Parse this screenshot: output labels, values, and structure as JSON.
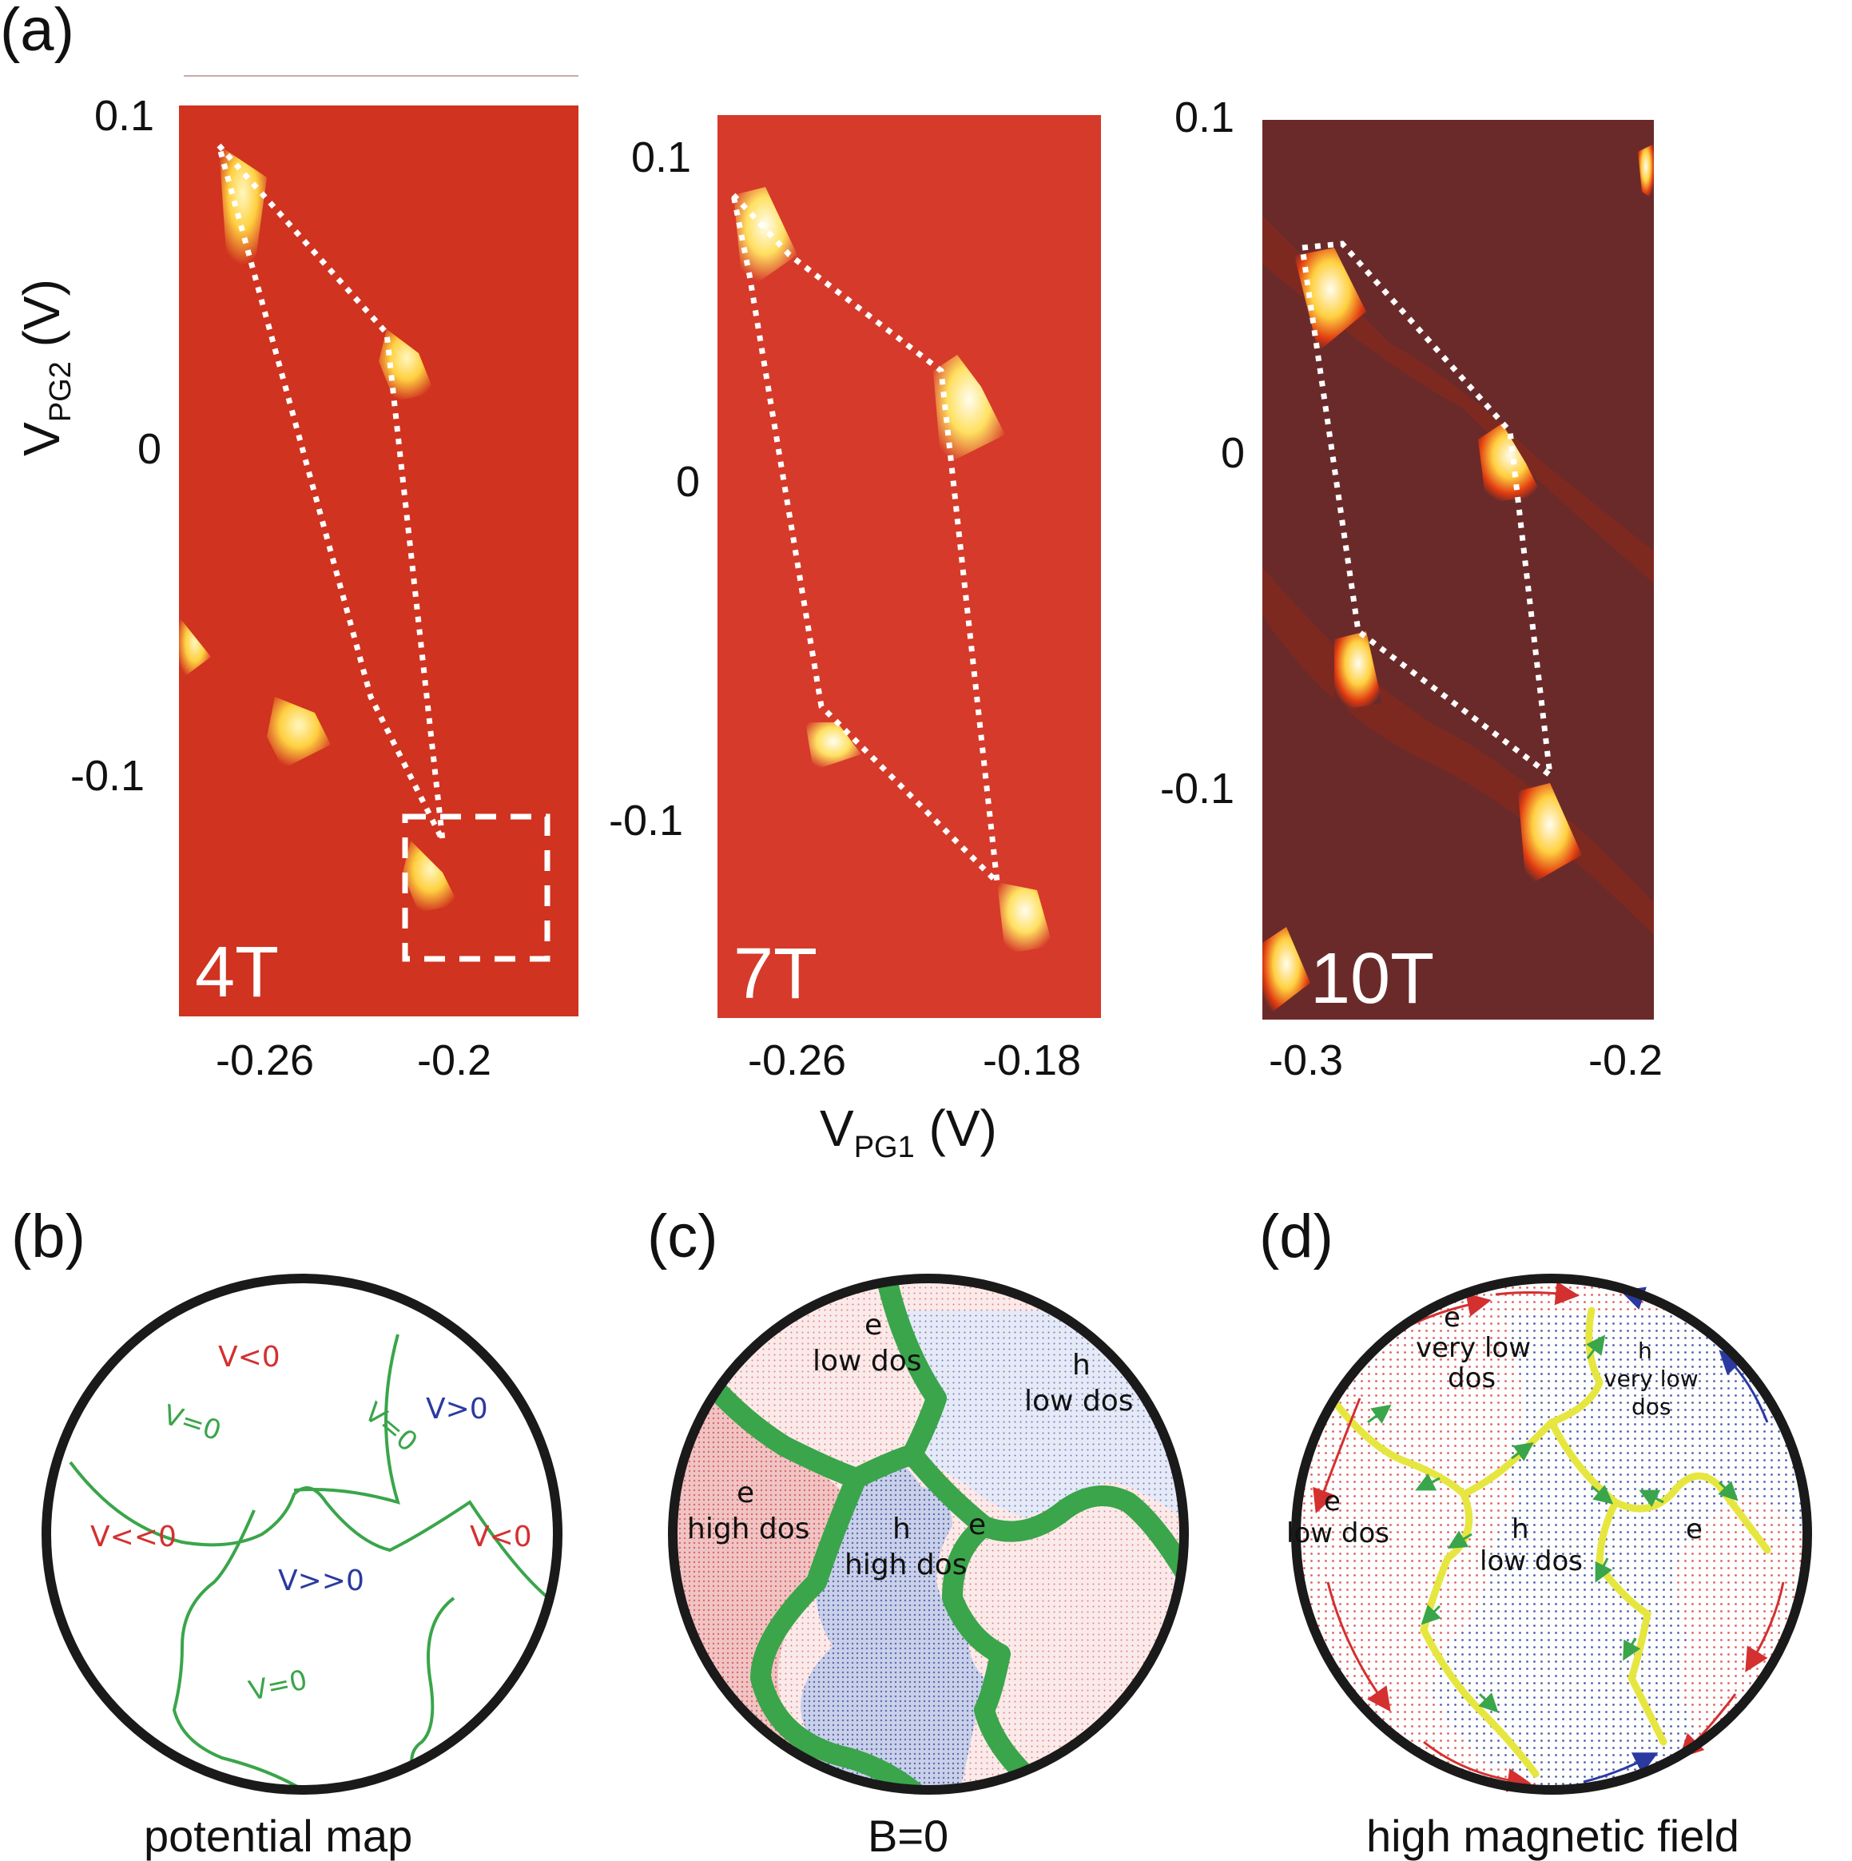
{
  "panel_a": {
    "label": "(a)",
    "ylabel": "V",
    "ylabel_sub": "PG2",
    "ylabel_unit": " (V)",
    "xlabel": "V",
    "xlabel_sub": "PG1",
    "xlabel_unit": " (V)",
    "maps": [
      {
        "field": "4T",
        "xticks": [
          "-0.26",
          "-0.2"
        ],
        "yticks": [
          "0.1",
          "0",
          "-0.1"
        ],
        "background": "#d0331f"
      },
      {
        "field": "7T",
        "xticks": [
          "-0.26",
          "-0.18"
        ],
        "yticks": [
          "0.1",
          "0",
          "-0.1"
        ],
        "background": "#d63a2a"
      },
      {
        "field": "10T",
        "xticks": [
          "-0.3",
          "-0.2"
        ],
        "yticks": [
          "0.1",
          "0",
          "-0.1"
        ],
        "background": "#6b2a2a"
      }
    ]
  },
  "panel_b": {
    "label": "(b)",
    "caption": "potential map",
    "regions": {
      "top_left": "V<0",
      "top_right": "V>0",
      "left": "V<<0",
      "center": "V>>0",
      "right": "V<0"
    },
    "contours": {
      "a": "V=0",
      "b": "V=0",
      "c": "V=0"
    }
  },
  "panel_c": {
    "label": "(c)",
    "caption": "B=0",
    "regions": {
      "top": {
        "carrier": "e",
        "dos": "low dos"
      },
      "top_right": {
        "carrier": "h",
        "dos": "low dos"
      },
      "left": {
        "carrier": "e",
        "dos": "high dos"
      },
      "center": {
        "carrier": "h",
        "dos": "high dos"
      },
      "right": {
        "carrier": "e"
      }
    }
  },
  "panel_d": {
    "label": "(d)",
    "caption": "high magnetic field",
    "regions": {
      "top": {
        "carrier": "e",
        "dos_1": "very low",
        "dos_2": "dos"
      },
      "top_right": {
        "carrier": "h",
        "dos_1": "very low",
        "dos_2": "dos"
      },
      "left": {
        "carrier": "e",
        "dos": "low dos"
      },
      "center": {
        "carrier": "h",
        "dos": "low dos"
      },
      "right": {
        "carrier": "e"
      }
    }
  },
  "colors": {
    "electron": "#e8a6a6",
    "hole": "#a7b3d6",
    "contour_b": "#3aa54a",
    "channel_c": "#3aa54a",
    "channel_d": "#e6e640",
    "text_red": "#d43030",
    "text_blue": "#2a3aa0"
  }
}
